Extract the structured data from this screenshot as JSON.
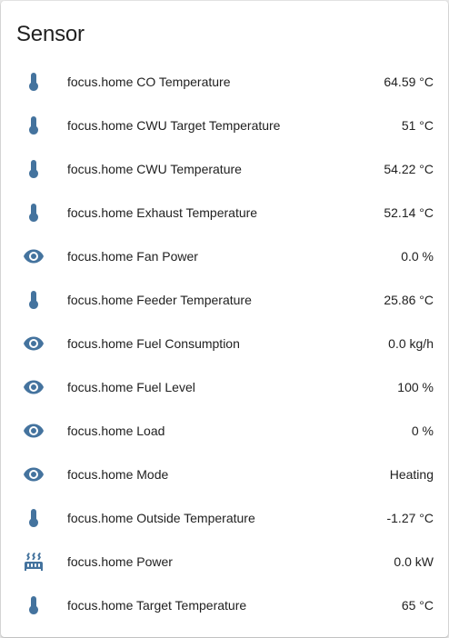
{
  "card": {
    "title": "Sensor",
    "icon_color": "#44739e"
  },
  "entities": [
    {
      "icon": "thermometer-icon",
      "name": "focus.home CO Temperature",
      "state": "64.59 °C"
    },
    {
      "icon": "thermometer-icon",
      "name": "focus.home CWU Target Temperature",
      "state": "51 °C"
    },
    {
      "icon": "thermometer-icon",
      "name": "focus.home CWU Temperature",
      "state": "54.22 °C"
    },
    {
      "icon": "thermometer-icon",
      "name": "focus.home Exhaust Temperature",
      "state": "52.14 °C"
    },
    {
      "icon": "eye-icon",
      "name": "focus.home Fan Power",
      "state": "0.0 %"
    },
    {
      "icon": "thermometer-icon",
      "name": "focus.home Feeder Temperature",
      "state": "25.86 °C"
    },
    {
      "icon": "eye-icon",
      "name": "focus.home Fuel Consumption",
      "state": "0.0 kg/h"
    },
    {
      "icon": "eye-icon",
      "name": "focus.home Fuel Level",
      "state": "100 %"
    },
    {
      "icon": "eye-icon",
      "name": "focus.home Load",
      "state": "0 %"
    },
    {
      "icon": "eye-icon",
      "name": "focus.home Mode",
      "state": "Heating"
    },
    {
      "icon": "thermometer-icon",
      "name": "focus.home Outside Temperature",
      "state": "-1.27 °C"
    },
    {
      "icon": "radiator-icon",
      "name": "focus.home Power",
      "state": "0.0 kW"
    },
    {
      "icon": "thermometer-icon",
      "name": "focus.home Target Temperature",
      "state": "65 °C"
    }
  ]
}
